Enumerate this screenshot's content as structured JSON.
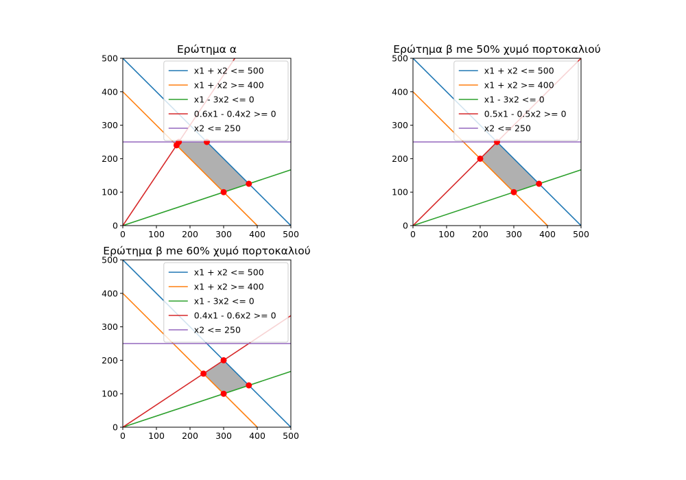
{
  "chart_data": [
    {
      "type": "line",
      "title": "Ερώτημα α",
      "xlabel": "",
      "ylabel": "",
      "xlim": [
        0,
        500
      ],
      "ylim": [
        0,
        500
      ],
      "xticks": [
        0,
        100,
        200,
        300,
        400,
        500
      ],
      "yticks": [
        0,
        100,
        200,
        300,
        400,
        500
      ],
      "legend_position": "upper-right",
      "grid": false,
      "series": [
        {
          "name": "x1 + x2 <= 500",
          "color": "#1f77b4",
          "x": [
            0,
            500
          ],
          "y": [
            500,
            0
          ]
        },
        {
          "name": "x1 + x2 >= 400",
          "color": "#ff7f0e",
          "x": [
            0,
            400
          ],
          "y": [
            400,
            0
          ]
        },
        {
          "name": "x1 - 3x2 <= 0",
          "color": "#2ca02c",
          "x": [
            0,
            500
          ],
          "y": [
            0,
            166.67
          ]
        },
        {
          "name": "0.6x1 - 0.4x2 >= 0",
          "color": "#d62728",
          "x": [
            0,
            333.33
          ],
          "y": [
            0,
            500
          ]
        },
        {
          "name": "x2 <= 250",
          "color": "#9467bd",
          "x": [
            0,
            500
          ],
          "y": [
            250,
            250
          ]
        }
      ],
      "feasible_region": {
        "color": "#b0b0b0",
        "x": [
          166.67,
          250,
          375,
          300,
          160
        ],
        "y": [
          250,
          250,
          125,
          100,
          240
        ]
      },
      "points": {
        "color": "#ff0000",
        "x": [
          160,
          166.67,
          250,
          375,
          300
        ],
        "y": [
          240,
          250,
          250,
          125,
          100
        ]
      }
    },
    {
      "type": "line",
      "title": "Ερώτημα β me 50% χυμό πορτοκαλιού",
      "xlabel": "",
      "ylabel": "",
      "xlim": [
        0,
        500
      ],
      "ylim": [
        0,
        500
      ],
      "xticks": [
        0,
        100,
        200,
        300,
        400,
        500
      ],
      "yticks": [
        0,
        100,
        200,
        300,
        400,
        500
      ],
      "legend_position": "upper-right",
      "grid": false,
      "series": [
        {
          "name": "x1 + x2 <= 500",
          "color": "#1f77b4",
          "x": [
            0,
            500
          ],
          "y": [
            500,
            0
          ]
        },
        {
          "name": "x1 + x2 >= 400",
          "color": "#ff7f0e",
          "x": [
            0,
            400
          ],
          "y": [
            400,
            0
          ]
        },
        {
          "name": "x1 - 3x2 <= 0",
          "color": "#2ca02c",
          "x": [
            0,
            500
          ],
          "y": [
            0,
            166.67
          ]
        },
        {
          "name": "0.5x1 - 0.5x2 >= 0",
          "color": "#d62728",
          "x": [
            0,
            500
          ],
          "y": [
            0,
            500
          ]
        },
        {
          "name": "x2 <= 250",
          "color": "#9467bd",
          "x": [
            0,
            500
          ],
          "y": [
            250,
            250
          ]
        }
      ],
      "feasible_region": {
        "color": "#b0b0b0",
        "x": [
          200,
          250,
          375,
          300
        ],
        "y": [
          200,
          250,
          125,
          100
        ]
      },
      "points": {
        "color": "#ff0000",
        "x": [
          200,
          250,
          375,
          300
        ],
        "y": [
          200,
          250,
          125,
          100
        ]
      }
    },
    {
      "type": "line",
      "title": "Ερώτημα β me 60% χυμό πορτοκαλιού",
      "xlabel": "",
      "ylabel": "",
      "xlim": [
        0,
        500
      ],
      "ylim": [
        0,
        500
      ],
      "xticks": [
        0,
        100,
        200,
        300,
        400,
        500
      ],
      "yticks": [
        0,
        100,
        200,
        300,
        400,
        500
      ],
      "legend_position": "upper-right",
      "grid": false,
      "series": [
        {
          "name": "x1 + x2 <= 500",
          "color": "#1f77b4",
          "x": [
            0,
            500
          ],
          "y": [
            500,
            0
          ]
        },
        {
          "name": "x1 + x2 >= 400",
          "color": "#ff7f0e",
          "x": [
            0,
            400
          ],
          "y": [
            400,
            0
          ]
        },
        {
          "name": "x1 - 3x2 <= 0",
          "color": "#2ca02c",
          "x": [
            0,
            500
          ],
          "y": [
            0,
            166.67
          ]
        },
        {
          "name": "0.4x1 - 0.6x2 >= 0",
          "color": "#d62728",
          "x": [
            0,
            500
          ],
          "y": [
            0,
            333.33
          ]
        },
        {
          "name": "x2 <= 250",
          "color": "#9467bd",
          "x": [
            0,
            500
          ],
          "y": [
            250,
            250
          ]
        }
      ],
      "feasible_region": {
        "color": "#b0b0b0",
        "x": [
          240,
          300,
          375,
          300
        ],
        "y": [
          160,
          200,
          125,
          100
        ]
      },
      "points": {
        "color": "#ff0000",
        "x": [
          240,
          300,
          375,
          300
        ],
        "y": [
          160,
          200,
          125,
          100
        ]
      }
    }
  ]
}
